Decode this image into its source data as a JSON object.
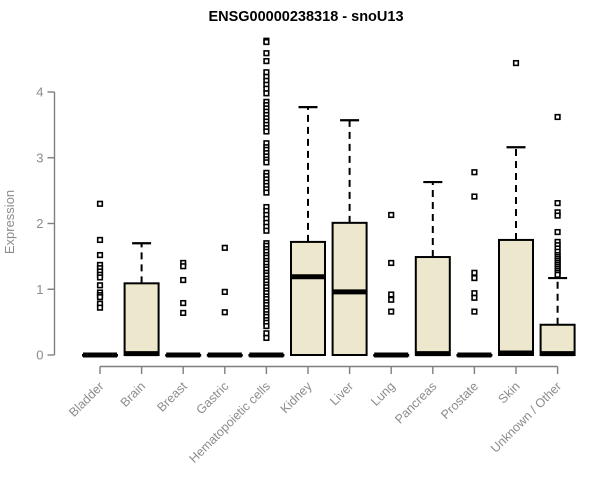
{
  "chart_data": {
    "type": "boxplot",
    "title": "ENSG00000238318 - snoU13",
    "ylabel": "Expression",
    "xlabel": "",
    "yticks": [
      0,
      1,
      2,
      3,
      4
    ],
    "ylim": [
      0,
      4.9
    ],
    "grid": false,
    "legend": null,
    "categories": [
      "Bladder",
      "Brain",
      "Breast",
      "Gastric",
      "Hematopoietic cells",
      "Kidney",
      "Liver",
      "Lung",
      "Pancreas",
      "Prostate",
      "Skin",
      "Unknown / Other"
    ],
    "boxes": [
      {
        "category": "Bladder",
        "q1": 0,
        "median": 0,
        "q3": 0,
        "whisker_low": 0,
        "whisker_high": 0,
        "outliers": [
          2.3,
          1.75,
          1.52,
          1.37,
          1.32,
          1.27,
          1.22,
          1.18,
          1.06,
          0.95,
          0.91,
          0.88,
          0.78,
          0.72
        ]
      },
      {
        "category": "Brain",
        "q1": 0,
        "median": 0.02,
        "q3": 1.09,
        "whisker_low": 0,
        "whisker_high": 1.7,
        "outliers": []
      },
      {
        "category": "Breast",
        "q1": 0,
        "median": 0,
        "q3": 0,
        "whisker_low": 0,
        "whisker_high": 0,
        "outliers": [
          1.4,
          1.35,
          1.14,
          0.79,
          0.64
        ]
      },
      {
        "category": "Gastric",
        "q1": 0,
        "median": 0,
        "q3": 0,
        "whisker_low": 0,
        "whisker_high": 0,
        "outliers": [
          1.63,
          0.96,
          0.65
        ]
      },
      {
        "category": "Hematopoietic cells",
        "q1": 0,
        "median": 0,
        "q3": 0,
        "whisker_low": 0,
        "whisker_high": 0,
        "outliers": [
          4.78,
          4.76,
          4.59,
          4.47,
          4.3,
          4.23,
          4.17,
          4.11,
          4.05,
          3.98,
          3.85,
          3.8,
          3.75,
          3.7,
          3.65,
          3.6,
          3.55,
          3.5,
          3.45,
          3.4,
          3.22,
          3.16,
          3.12,
          3.07,
          3.02,
          2.97,
          2.93,
          2.77,
          2.72,
          2.67,
          2.62,
          2.57,
          2.52,
          2.47,
          2.25,
          2.19,
          2.13,
          2.07,
          2.01,
          1.95,
          1.89,
          1.7,
          1.66,
          1.61,
          1.57,
          1.52,
          1.48,
          1.43,
          1.39,
          1.34,
          1.3,
          1.25,
          1.21,
          1.16,
          1.12,
          1.07,
          1.03,
          0.98,
          0.94,
          0.89,
          0.85,
          0.8,
          0.76,
          0.71,
          0.67,
          0.62,
          0.58,
          0.53,
          0.49,
          0.44,
          0.33,
          0.26
        ]
      },
      {
        "category": "Kidney",
        "q1": 0,
        "median": 1.19,
        "q3": 1.72,
        "whisker_low": 0,
        "whisker_high": 3.77,
        "outliers": []
      },
      {
        "category": "Liver",
        "q1": 0,
        "median": 0.96,
        "q3": 2.01,
        "whisker_low": 0,
        "whisker_high": 3.57,
        "outliers": []
      },
      {
        "category": "Lung",
        "q1": 0,
        "median": 0,
        "q3": 0,
        "whisker_low": 0,
        "whisker_high": 0,
        "outliers": [
          2.13,
          1.4,
          0.92,
          0.84,
          0.66
        ]
      },
      {
        "category": "Pancreas",
        "q1": 0,
        "median": 0.02,
        "q3": 1.49,
        "whisker_low": 0,
        "whisker_high": 2.63,
        "outliers": []
      },
      {
        "category": "Prostate",
        "q1": 0,
        "median": 0,
        "q3": 0,
        "whisker_low": 0,
        "whisker_high": 0,
        "outliers": [
          2.78,
          2.41,
          1.25,
          1.17,
          0.94,
          0.87,
          0.66
        ]
      },
      {
        "category": "Skin",
        "q1": 0,
        "median": 0.03,
        "q3": 1.75,
        "whisker_low": 0,
        "whisker_high": 3.16,
        "outliers": [
          4.44
        ]
      },
      {
        "category": "Unknown / Other",
        "q1": 0,
        "median": 0.02,
        "q3": 0.46,
        "whisker_low": 0,
        "whisker_high": 1.17,
        "outliers": [
          3.62,
          2.31,
          2.17,
          2.12,
          1.87,
          1.72,
          1.67,
          1.62,
          1.57,
          1.52,
          1.49,
          1.46,
          1.43,
          1.4,
          1.37,
          1.34,
          1.31,
          1.28,
          1.25,
          1.22
        ]
      }
    ],
    "colors": {
      "box_fill": "#ede8cd",
      "box_border": "#000000",
      "median": "#000000",
      "whisker": "#000000",
      "outlier_stroke": "#000000",
      "outlier_fill": "#ffffff",
      "axis_line": "#7f7f7f",
      "tick_label": "#8c8c8c",
      "title": "#000000",
      "background": "#ffffff"
    }
  }
}
